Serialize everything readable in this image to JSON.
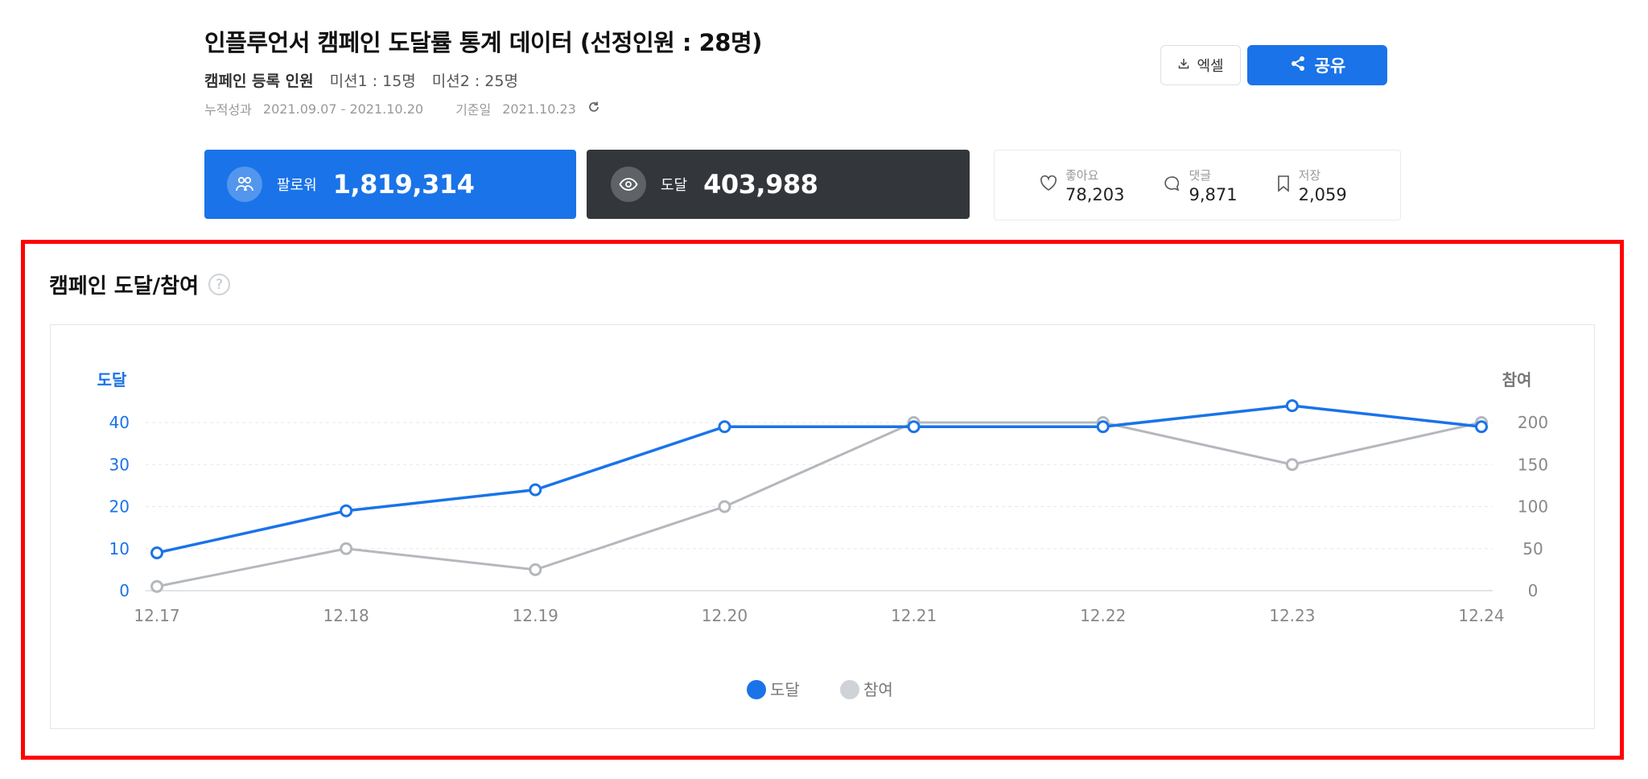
{
  "header": {
    "title": "인플루언서 캠페인 도달률 통계 데이터 (선정인원 : 28명)",
    "registered_label": "캠페인 등록 인원",
    "mission1": "미션1 : 15명",
    "mission2": "미션2 : 25명",
    "period_label": "누적성과",
    "period_value": "2021.09.07 - 2021.10.20",
    "base_label": "기준일",
    "base_value": "2021.10.23"
  },
  "buttons": {
    "excel": "엑셀",
    "share": "공유"
  },
  "cards": {
    "followers": {
      "label": "팔로워",
      "value": "1,819,314"
    },
    "reach": {
      "label": "도달",
      "value": "403,988"
    }
  },
  "stats": [
    {
      "label": "좋아요",
      "value": "78,203",
      "icon": "heart-icon"
    },
    {
      "label": "댓글",
      "value": "9,871",
      "icon": "comment-icon"
    },
    {
      "label": "저장",
      "value": "2,059",
      "icon": "bookmark-icon"
    }
  ],
  "section": {
    "title": "캠페인 도달/참여"
  },
  "colors": {
    "accent": "#1a73e8",
    "dark": "#33363b",
    "grey_series": "#b4b8bd",
    "highlight": "#ff0000"
  },
  "chart_data": {
    "type": "line",
    "categories": [
      "12.17",
      "12.18",
      "12.19",
      "12.20",
      "12.21",
      "12.22",
      "12.23",
      "12.24"
    ],
    "series": [
      {
        "name": "도달",
        "axis": "left",
        "color": "#1a73e8",
        "values": [
          9,
          19,
          24,
          39,
          39,
          39,
          44,
          39
        ]
      },
      {
        "name": "참여",
        "axis": "right",
        "color": "#b4b8bd",
        "values": [
          5,
          50,
          25,
          100,
          200,
          200,
          150,
          200
        ]
      }
    ],
    "y_left": {
      "label": "도달",
      "ticks": [
        0,
        10,
        20,
        30,
        40
      ],
      "ylim": [
        0,
        40
      ]
    },
    "y_right": {
      "label": "참여",
      "ticks": [
        0,
        50,
        100,
        150,
        200
      ],
      "ylim": [
        0,
        200
      ]
    },
    "grid": true,
    "legend_position": "bottom-center"
  }
}
